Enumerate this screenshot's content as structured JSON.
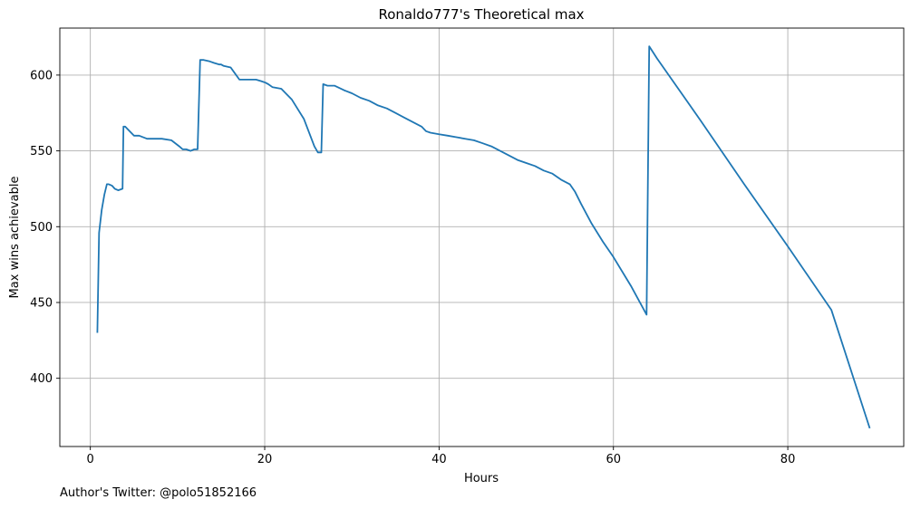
{
  "credit": "Author's Twitter: @polo51852166",
  "colors": {
    "line": "#1f77b4",
    "grid": "#b0b0b0",
    "axis": "#000000"
  },
  "chart_data": {
    "type": "line",
    "title": "Ronaldo777's Theoretical max",
    "xlabel": "Hours",
    "ylabel": "Max wins achievable",
    "xlim": [
      -3.5,
      93.3
    ],
    "ylim": [
      355,
      631
    ],
    "xticks": [
      0,
      20,
      40,
      60,
      80
    ],
    "yticks": [
      400,
      450,
      500,
      550,
      600
    ],
    "grid": true,
    "series": [
      {
        "x": [
          0.8,
          1.0,
          1.3,
          1.6,
          1.9,
          2.1,
          2.5,
          2.8,
          3.2,
          3.7,
          3.8,
          4.0,
          4.5,
          5.0,
          5.6,
          6.5,
          7.5,
          8.2,
          9.3,
          10.2,
          10.6,
          11.0,
          11.5,
          11.9,
          12.3,
          12.6,
          13.0,
          13.7,
          14.2,
          14.8,
          15.0,
          15.3,
          16.1,
          16.6,
          17.1,
          17.6,
          18.2,
          19.0,
          19.6,
          20.1,
          20.4,
          20.9,
          21.9,
          23.1,
          24.5,
          25.7,
          26.1,
          26.5,
          26.7,
          27.2,
          28.0,
          29.1,
          30.0,
          31.0,
          32.0,
          33.0,
          34.0,
          35.0,
          36.0,
          37.0,
          38.0,
          38.5,
          39.0,
          40.0,
          41.0,
          42.0,
          43.0,
          44.0,
          45.0,
          46.0,
          47.0,
          48.0,
          49.0,
          50.0,
          51.0,
          52.0,
          53.0,
          54.0,
          55.0,
          55.6,
          56.3,
          57.5,
          58.8,
          60.0,
          62.0,
          63.8,
          64.1,
          65.0,
          70.0,
          75.0,
          80.0,
          85.0,
          89.4
        ],
        "y": [
          430,
          496,
          511,
          521,
          528,
          528,
          527,
          525,
          524,
          525,
          566,
          566,
          563,
          560,
          560,
          558,
          558,
          558,
          557,
          553,
          551,
          551,
          550,
          551,
          551,
          610,
          610,
          609,
          608,
          607,
          607,
          606,
          605,
          601,
          597,
          597,
          597,
          597,
          596,
          595,
          594,
          592,
          591,
          584,
          571,
          553,
          549,
          549,
          594,
          593,
          593,
          590,
          588,
          585,
          583,
          580,
          578,
          575,
          572,
          569,
          566,
          563,
          562,
          561,
          560,
          559,
          558,
          557,
          555,
          553,
          550,
          547,
          544,
          542,
          540,
          537,
          535,
          531,
          528,
          523,
          515,
          502,
          490,
          480,
          461,
          442,
          619,
          611,
          570,
          528,
          487,
          445,
          367
        ]
      }
    ]
  }
}
